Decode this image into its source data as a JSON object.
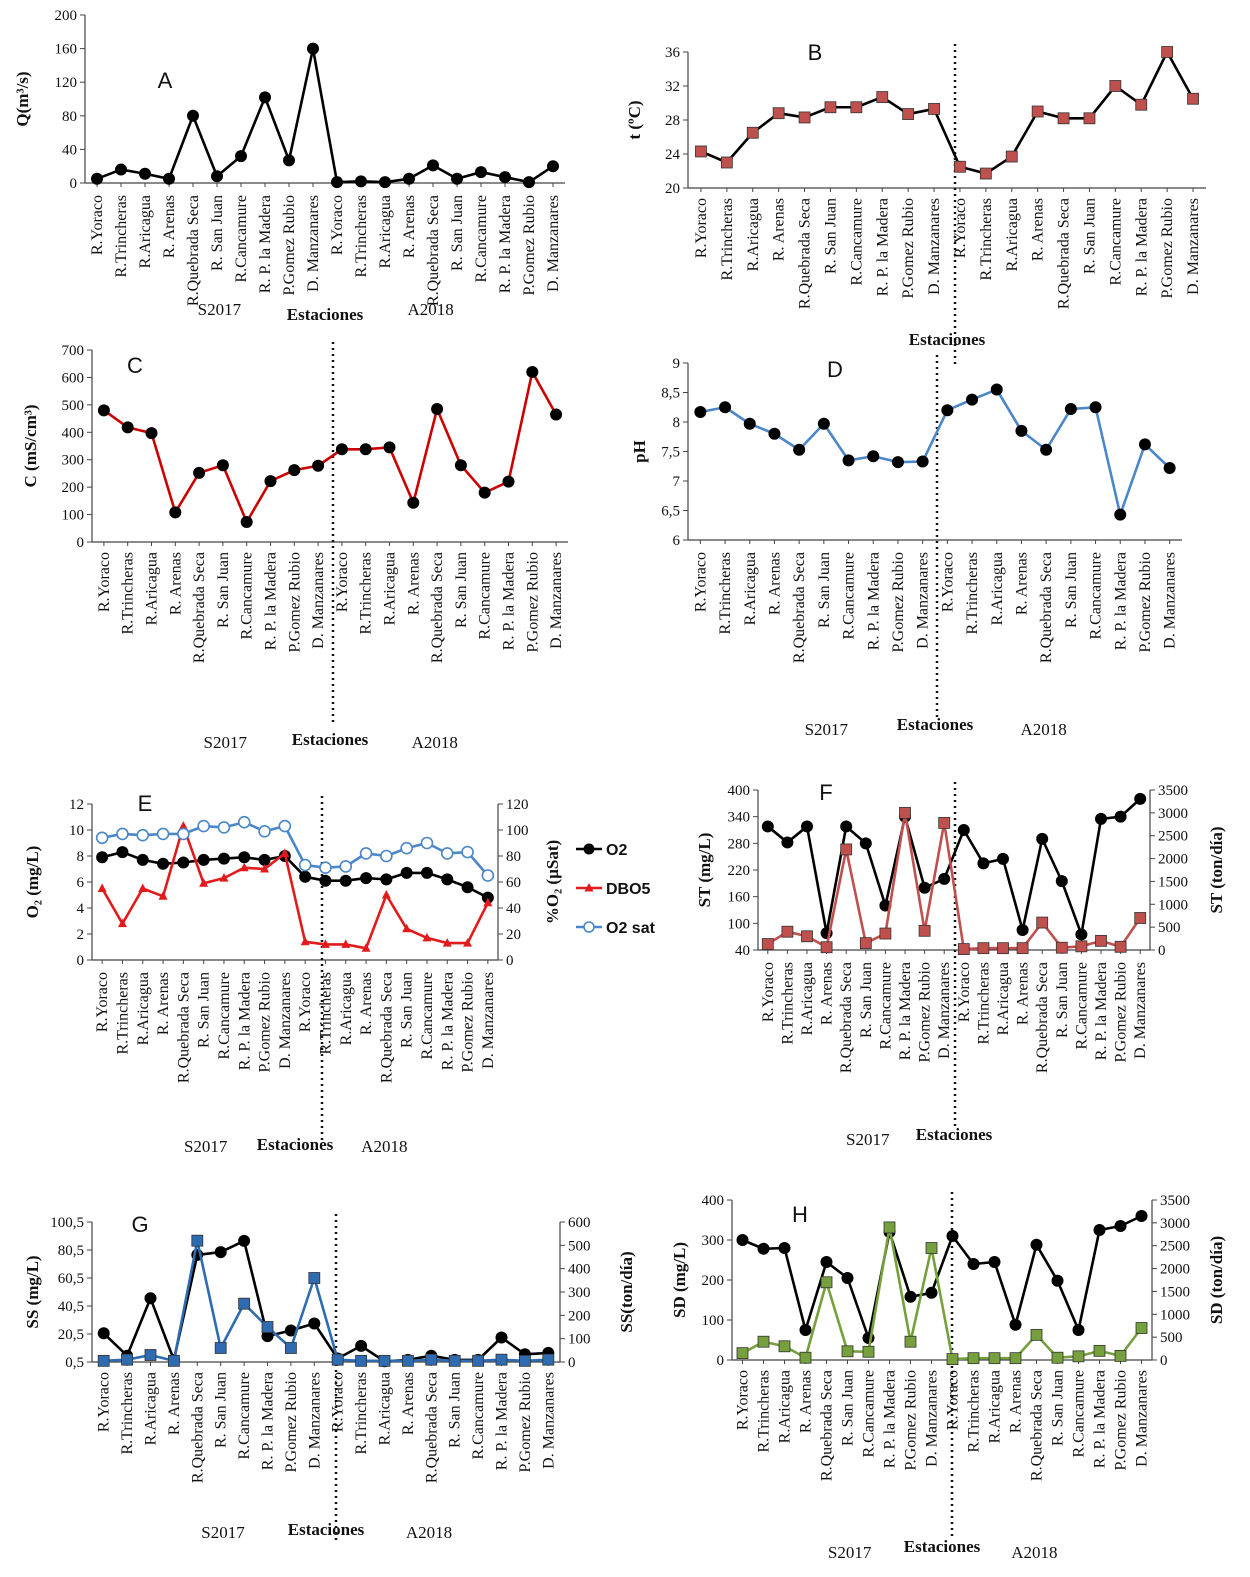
{
  "figure": {
    "stations": [
      "R.Yoraco",
      "R.Trincheras",
      "R.Aricagua",
      "R. Arenas",
      "R.Quebrada Seca",
      "R. San Juan",
      "R.Cancamure",
      "R. P. la Madera",
      "P.Gomez Rubio",
      "D. Manzanares",
      "R.Yoraco",
      "R.Trincheras",
      "R.Aricagua",
      "R. Arenas",
      "R.Quebrada Seca",
      "R. San Juan",
      "R.Cancamure",
      "R. P. la Madera",
      "P.Gomez Rubio",
      "D. Manzanares"
    ]
  },
  "chart_data": [
    {
      "panel": "A",
      "type": "line",
      "ylabel": "Q(m³/s)",
      "ylim": [
        0,
        200
      ],
      "yticks": [
        0,
        40,
        80,
        120,
        160,
        200
      ],
      "xlabel": "Estaciones",
      "periods": [
        "S2017",
        "A2018"
      ],
      "divider": false,
      "series": [
        {
          "values": [
            5,
            16,
            11,
            5,
            80,
            8,
            32,
            102,
            27,
            160,
            1,
            2,
            1,
            5,
            21,
            5,
            13,
            7,
            1,
            20
          ],
          "color": "#000000",
          "marker": "circle"
        }
      ]
    },
    {
      "panel": "B",
      "type": "line",
      "ylabel": "t (ºC)",
      "ylim": [
        20,
        36
      ],
      "yticks": [
        20,
        24,
        28,
        32,
        36
      ],
      "xlabel": "Estaciones",
      "periods": [],
      "divider": true,
      "series": [
        {
          "values": [
            24.3,
            23,
            26.5,
            28.8,
            28.3,
            29.5,
            29.5,
            30.7,
            28.7,
            29.3,
            22.5,
            21.7,
            23.7,
            29,
            28.2,
            28.2,
            32,
            29.8,
            36,
            30.5
          ],
          "color": "#000000",
          "marker": "square",
          "markerColor": "#c0504d"
        }
      ]
    },
    {
      "panel": "C",
      "type": "line",
      "ylabel": "C (mS/cm³)",
      "ylim": [
        0,
        700
      ],
      "yticks": [
        0,
        100,
        200,
        300,
        400,
        500,
        600,
        700
      ],
      "xlabel": "Estaciones",
      "periods": [
        "S2017",
        "A2018"
      ],
      "divider": true,
      "series": [
        {
          "values": [
            480,
            418,
            397,
            108,
            252,
            280,
            73,
            222,
            262,
            278,
            338,
            338,
            345,
            143,
            485,
            280,
            180,
            220,
            620,
            465
          ],
          "color": "#cc0000",
          "marker": "circle",
          "markerColor": "#000000"
        }
      ]
    },
    {
      "panel": "D",
      "type": "line",
      "ylabel": "pH",
      "ylim": [
        6,
        9
      ],
      "yticks": [
        "6",
        "6,5",
        "7",
        "7,5",
        "8",
        "8,5",
        "9"
      ],
      "xlabel": "Estaciones",
      "periods": [
        "S2017",
        "A2018"
      ],
      "divider": true,
      "series": [
        {
          "values": [
            8.17,
            8.25,
            7.97,
            7.8,
            7.53,
            7.97,
            7.35,
            7.42,
            7.32,
            7.33,
            8.2,
            8.38,
            8.55,
            7.85,
            7.53,
            8.22,
            8.25,
            6.43,
            7.62,
            7.22
          ],
          "color": "#4a86c8",
          "marker": "circle",
          "markerColor": "#000000"
        }
      ]
    },
    {
      "panel": "E",
      "type": "line",
      "ylabel": "O₂ (mg/L)",
      "ylim": [
        0,
        12
      ],
      "yticks": [
        0,
        2,
        4,
        6,
        8,
        10,
        12
      ],
      "y2label": "%O₂ (µSat)",
      "y2lim": [
        0,
        120
      ],
      "y2ticks": [
        0,
        20,
        40,
        60,
        80,
        100,
        120
      ],
      "xlabel": "Estaciones",
      "periods": [
        "S2017",
        "A2018"
      ],
      "divider": true,
      "series": [
        {
          "name": "O2",
          "values": [
            7.9,
            8.3,
            7.7,
            7.4,
            7.5,
            7.7,
            7.8,
            7.9,
            7.7,
            8.0,
            6.4,
            6.1,
            6.1,
            6.3,
            6.2,
            6.7,
            6.7,
            6.2,
            5.6,
            4.8
          ],
          "color": "#000000",
          "marker": "circle",
          "axis": 1
        },
        {
          "name": "DBO5",
          "values": [
            5.5,
            2.8,
            5.5,
            4.9,
            10.3,
            5.9,
            6.3,
            7.1,
            7.0,
            8.2,
            1.4,
            1.2,
            1.2,
            0.9,
            5.0,
            2.4,
            1.7,
            1.3,
            1.3,
            4.4
          ],
          "color": "#e31a1c",
          "marker": "triangle",
          "axis": 1
        },
        {
          "name": "O2 sat",
          "values": [
            94,
            97,
            96,
            97,
            97,
            103,
            102,
            106,
            99,
            103,
            73,
            71,
            72,
            82,
            80,
            86,
            90,
            82,
            83,
            65
          ],
          "color": "#4a86c8",
          "marker": "circle-open",
          "axis": 2
        }
      ]
    },
    {
      "panel": "F",
      "type": "line",
      "ylabel": "ST (mg/L)",
      "ylim": [
        40,
        400
      ],
      "yticks": [
        40,
        100,
        160,
        220,
        280,
        340,
        400
      ],
      "y2label": "ST (ton/día)",
      "y2lim": [
        0,
        3500
      ],
      "y2ticks": [
        0,
        500,
        1000,
        1500,
        2000,
        2500,
        3000,
        3500
      ],
      "xlabel": "Estaciones",
      "periods": [
        "S2017"
      ],
      "divider": true,
      "series": [
        {
          "values": [
            318,
            282,
            318,
            78,
            318,
            280,
            140,
            340,
            180,
            200,
            310,
            235,
            245,
            85,
            290,
            195,
            75,
            335,
            340,
            380
          ],
          "color": "#000000",
          "marker": "circle",
          "axis": 1
        },
        {
          "values": [
            130,
            400,
            300,
            60,
            2200,
            150,
            360,
            3000,
            420,
            2780,
            20,
            40,
            40,
            40,
            600,
            50,
            80,
            200,
            70,
            700
          ],
          "color": "#c0504d",
          "marker": "square",
          "axis": 2
        }
      ]
    },
    {
      "panel": "G",
      "type": "line",
      "ylabel": "SS (mg/L)",
      "ylim": [
        0.5,
        100.5
      ],
      "yticks": [
        "0,5",
        "20,5",
        "40,5",
        "60,5",
        "80,5",
        "100,5"
      ],
      "y2label": "SS(ton/día)",
      "y2lim": [
        0,
        600
      ],
      "y2ticks": [
        0,
        100,
        200,
        300,
        400,
        500,
        600
      ],
      "xlabel": "Estaciones",
      "periods": [
        "S2017",
        "A2018"
      ],
      "divider": true,
      "series": [
        {
          "values": [
            21,
            5,
            46,
            2,
            77,
            79,
            87,
            19,
            23,
            28,
            3,
            12,
            1,
            2,
            5,
            2,
            2,
            18,
            6,
            7
          ],
          "color": "#000000",
          "marker": "circle",
          "axis": 1
        },
        {
          "values": [
            5,
            10,
            30,
            5,
            520,
            60,
            250,
            150,
            60,
            360,
            10,
            5,
            5,
            5,
            10,
            5,
            5,
            10,
            5,
            10
          ],
          "color": "#2e6bb0",
          "marker": "square",
          "axis": 2
        }
      ]
    },
    {
      "panel": "H",
      "type": "line",
      "ylabel": "SD (mg/L)",
      "ylim": [
        0,
        400
      ],
      "yticks": [
        0,
        100,
        200,
        300,
        400
      ],
      "y2label": "SD (ton/día)",
      "y2lim": [
        0,
        3500
      ],
      "y2ticks": [
        0,
        500,
        1000,
        1500,
        2000,
        2500,
        3000,
        3500
      ],
      "xlabel": "Estaciones",
      "periods": [
        "S2017",
        "A2018"
      ],
      "divider": true,
      "series": [
        {
          "values": [
            300,
            278,
            280,
            75,
            245,
            205,
            55,
            320,
            158,
            168,
            310,
            240,
            245,
            88,
            288,
            198,
            75,
            325,
            335,
            360
          ],
          "color": "#000000",
          "marker": "circle",
          "axis": 1
        },
        {
          "values": [
            150,
            400,
            300,
            50,
            1700,
            190,
            180,
            2900,
            400,
            2450,
            20,
            40,
            40,
            40,
            550,
            50,
            80,
            200,
            90,
            700
          ],
          "color": "#76a03d",
          "marker": "square",
          "axis": 2
        }
      ]
    }
  ]
}
